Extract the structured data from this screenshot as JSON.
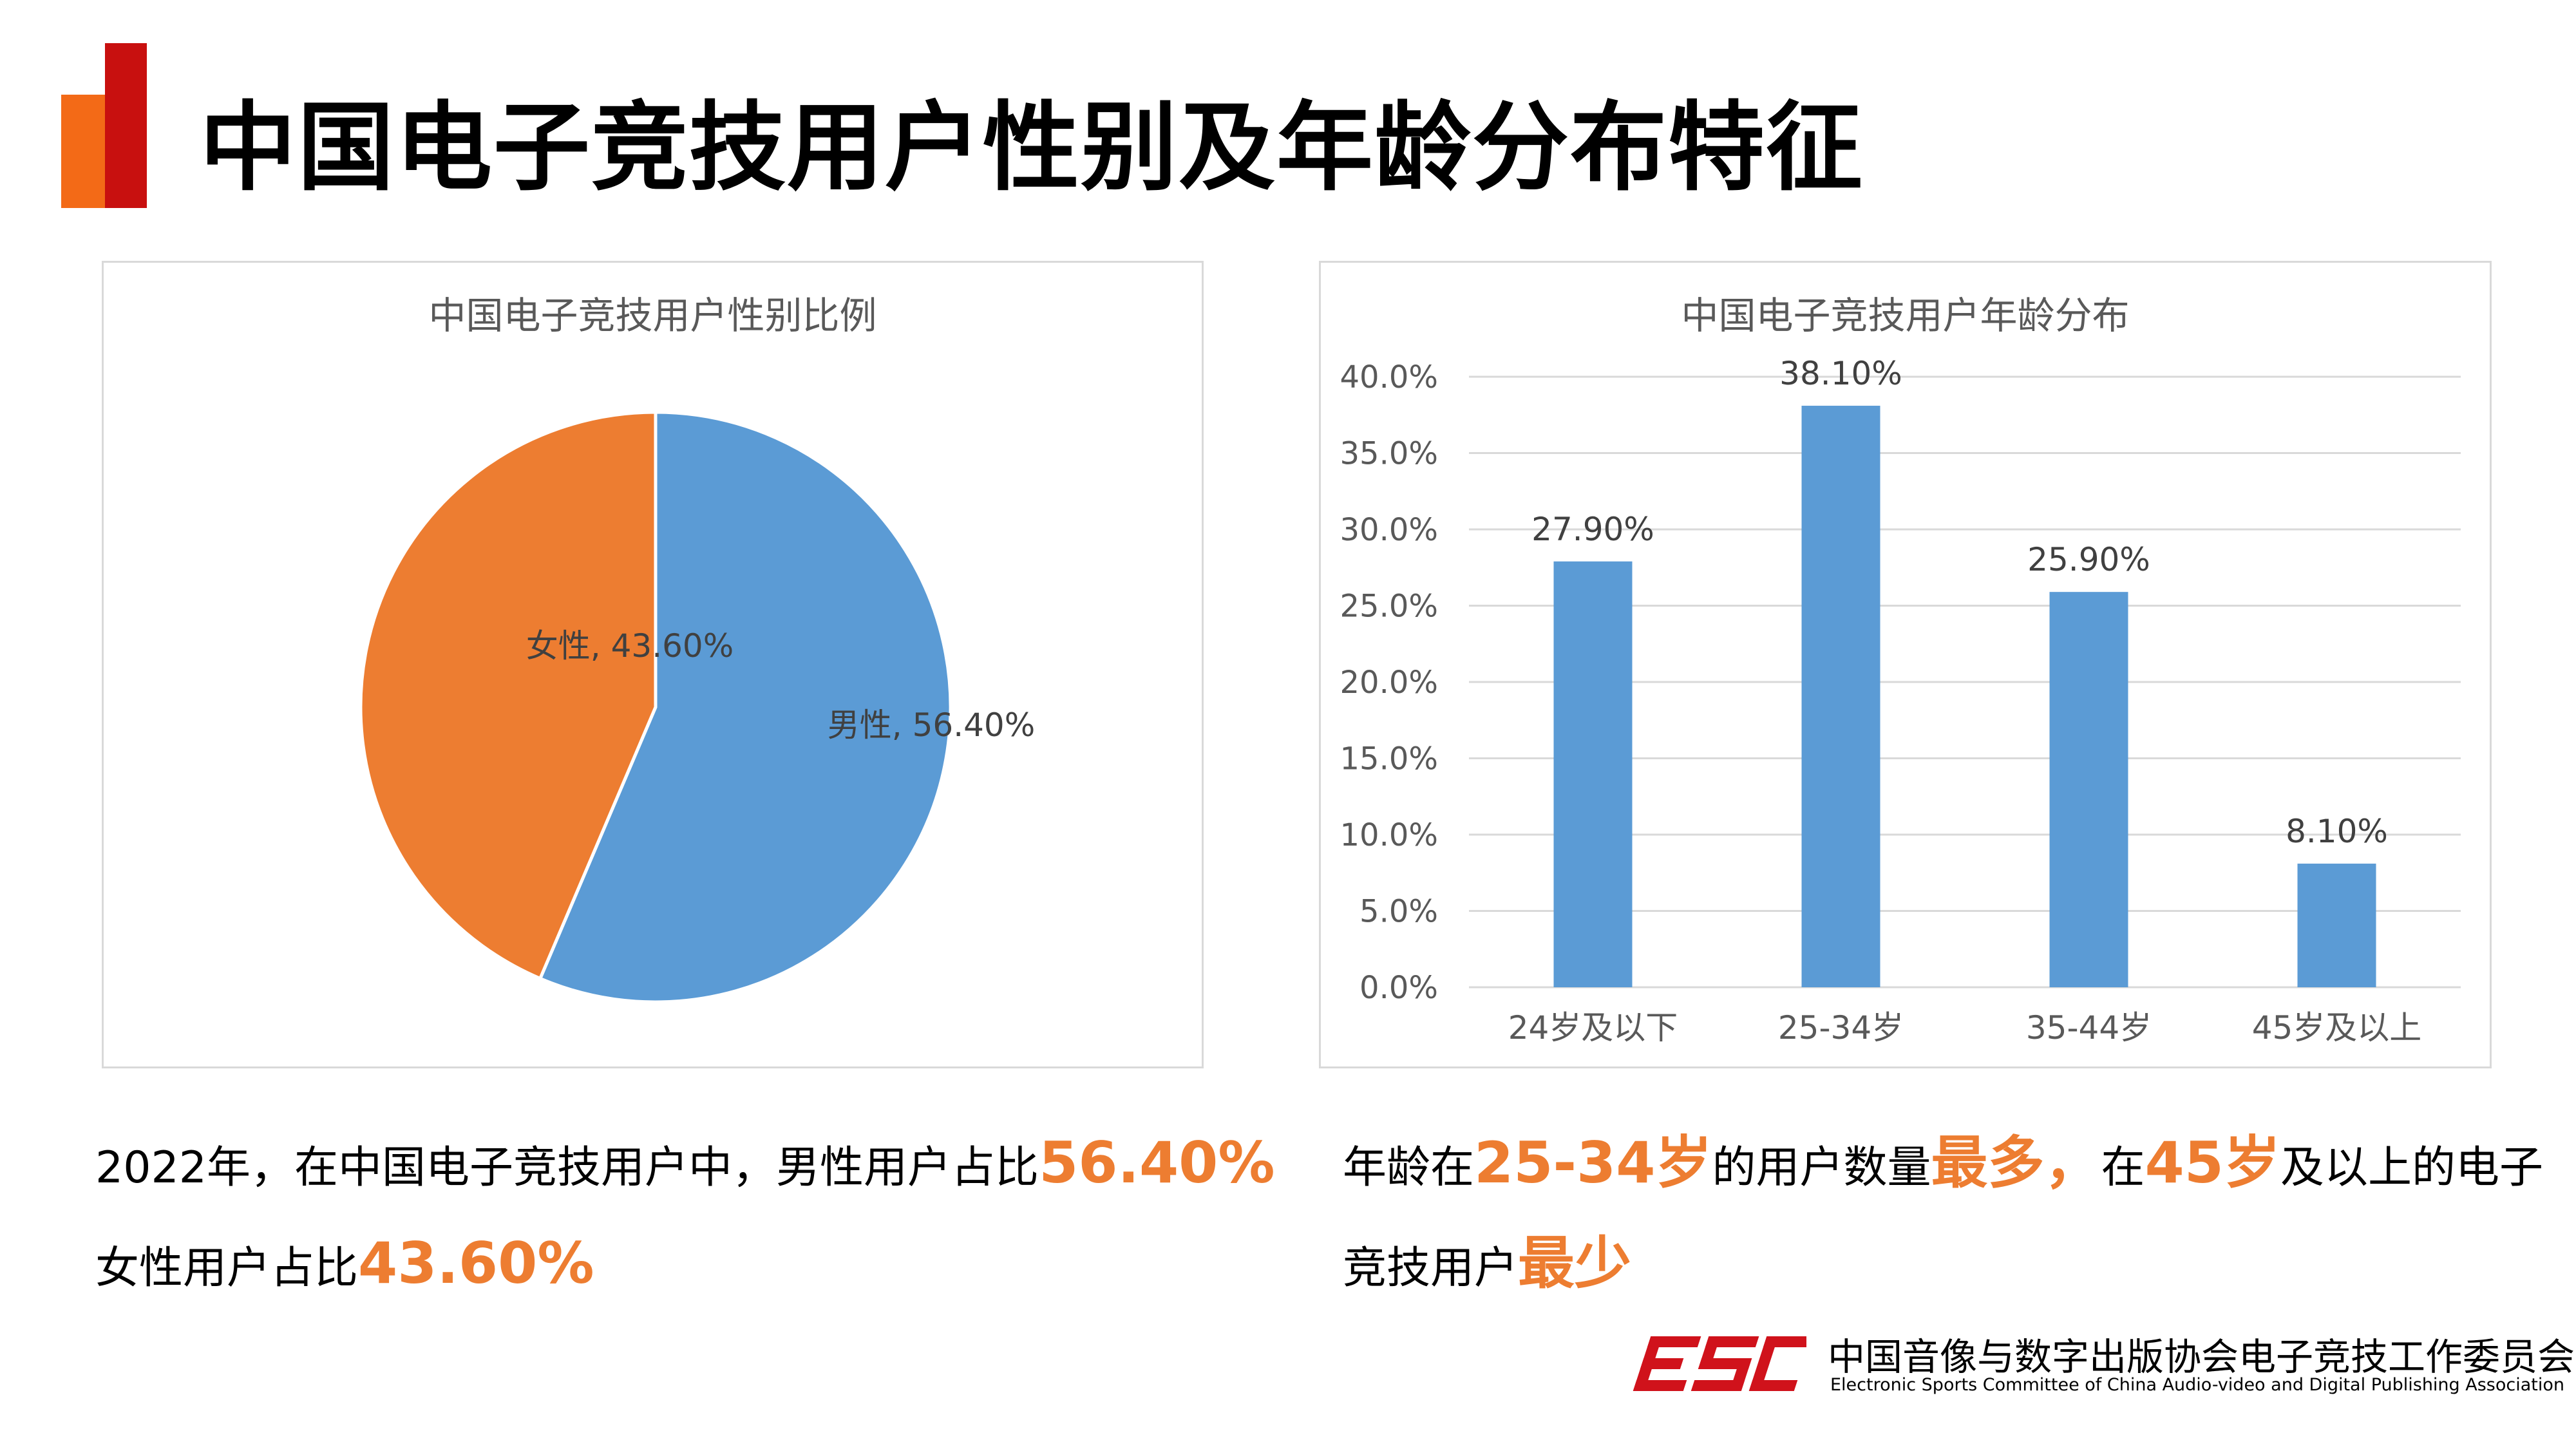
{
  "page": {
    "title": "中国电子竞技用户性别及年龄分布特征"
  },
  "colors": {
    "accent_orange": "#f36a17",
    "accent_red": "#c8100f",
    "blue": "#5b9bd5",
    "orange": "#ed7d31"
  },
  "chart_data": [
    {
      "type": "pie",
      "title": "中国电子竞技用户性别比例",
      "slices": [
        {
          "name": "男性",
          "value": 56.4,
          "label": "男性, 56.40%",
          "color": "#5b9bd5"
        },
        {
          "name": "女性",
          "value": 43.6,
          "label": "女性, 43.60%",
          "color": "#ed7d31"
        }
      ]
    },
    {
      "type": "bar",
      "title": "中国电子竞技用户年龄分布",
      "categories": [
        "24岁及以下",
        "25-34岁",
        "35-44岁",
        "45岁及以上"
      ],
      "values": [
        27.9,
        38.1,
        25.9,
        8.1
      ],
      "value_labels": [
        "27.90%",
        "38.10%",
        "25.90%",
        "8.10%"
      ],
      "y_ticks": [
        "0.0%",
        "5.0%",
        "10.0%",
        "15.0%",
        "20.0%",
        "25.0%",
        "30.0%",
        "35.0%",
        "40.0%"
      ],
      "ylim": [
        0,
        40
      ],
      "grid": true,
      "color": "#5b9bd5"
    }
  ],
  "summary_left": {
    "line1_text": "2022年，在中国电子竞技用户中，男性用户占比",
    "line1_highlight": "56.40%",
    "line2_text": "女性用户占比",
    "line2_highlight": "43.60%"
  },
  "summary_right": {
    "line1": [
      "年龄在",
      "25-34岁",
      "的用户数量",
      "最多，",
      "在",
      "45岁",
      "及以上的电子"
    ],
    "line2": [
      "竞技用户",
      "最少"
    ]
  },
  "footer": {
    "logo_text": "ESC",
    "org_cn": "中国音像与数字出版协会电子竞技工作委员会",
    "org_en": "Electronic Sports Committee of China Audio-video and Digital Publishing Association"
  }
}
